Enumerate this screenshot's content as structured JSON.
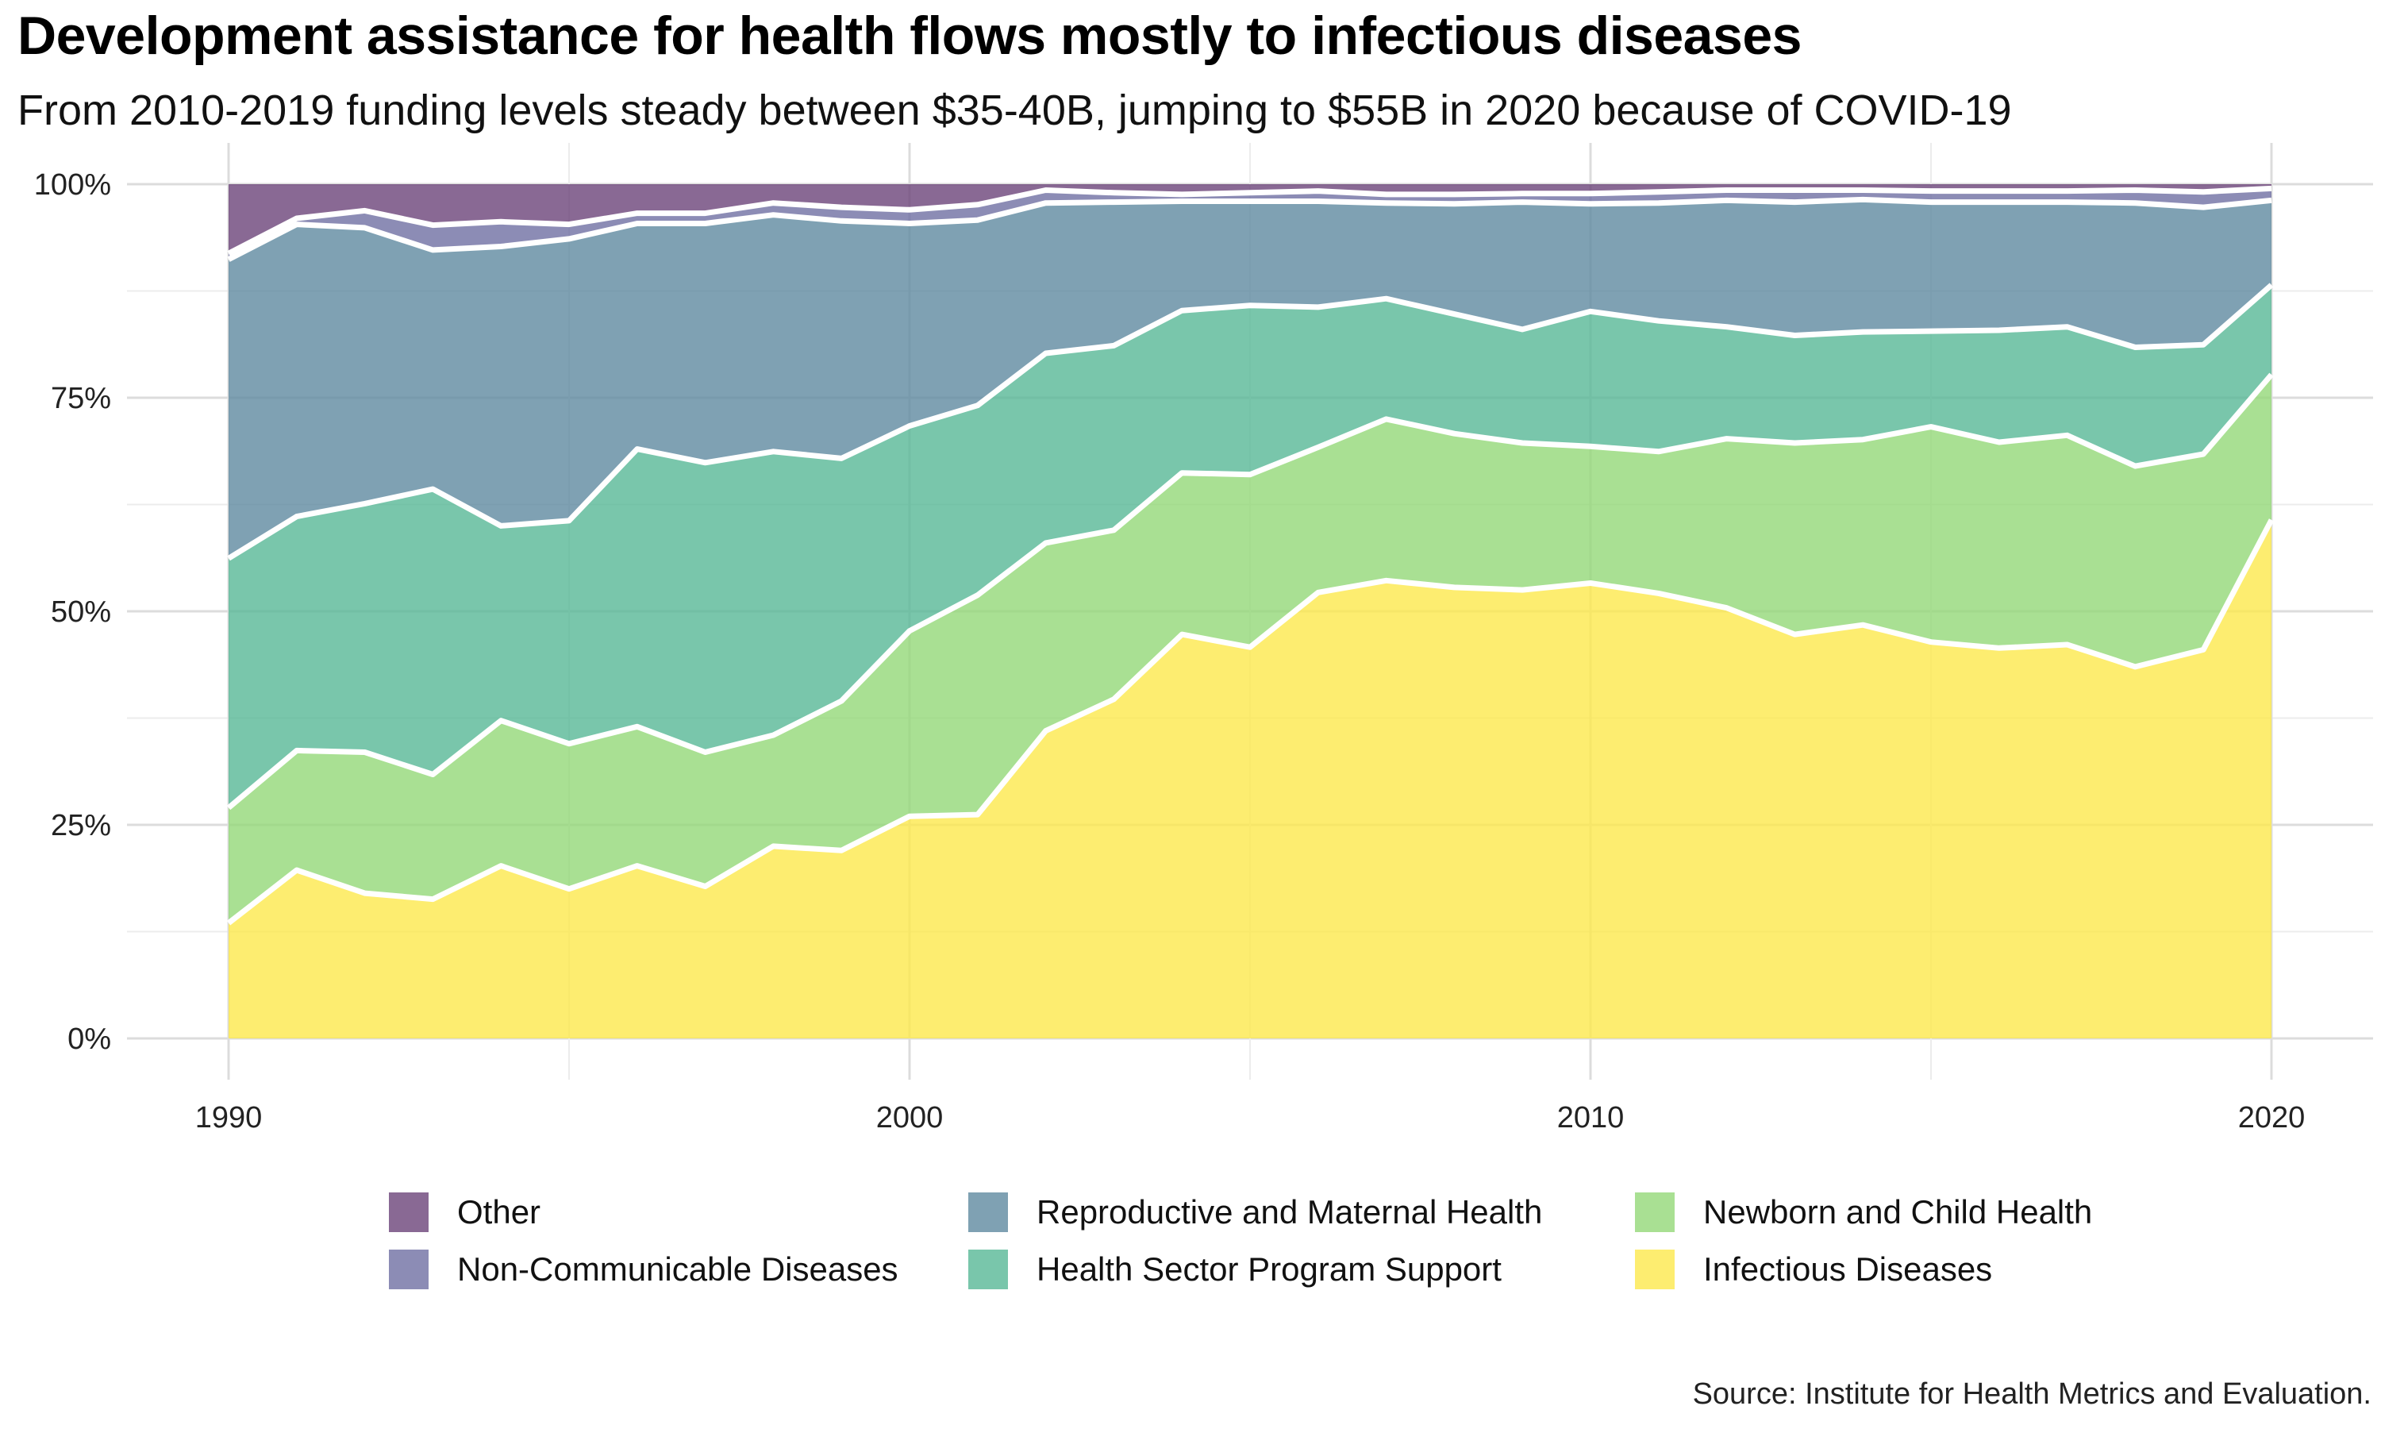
{
  "title": "Development assistance for health flows mostly to infectious diseases",
  "subtitle": "From 2010-2019 funding levels steady between $35-40B, jumping to $55B in 2020 because of COVID-19",
  "source": "Source: Institute for Health Metrics and Evaluation.",
  "legend": [
    {
      "label": "Other",
      "color": "#6b4479"
    },
    {
      "label": "Reproductive and Maternal Health",
      "color": "#5f8aa0"
    },
    {
      "label": "Newborn and Child Health",
      "color": "#93d878"
    },
    {
      "label": "Non-Communicable Diseases",
      "color": "#6f6fa3"
    },
    {
      "label": "Health Sector Program Support",
      "color": "#58b896"
    },
    {
      "label": "Infectious Diseases",
      "color": "#fde94c"
    }
  ],
  "chart_data": {
    "type": "area",
    "stacked": true,
    "normalized": true,
    "x": [
      1990,
      1991,
      1992,
      1993,
      1994,
      1995,
      1996,
      1997,
      1998,
      1999,
      2000,
      2001,
      2002,
      2003,
      2004,
      2005,
      2006,
      2007,
      2008,
      2009,
      2010,
      2011,
      2012,
      2013,
      2014,
      2015,
      2016,
      2017,
      2018,
      2019,
      2020
    ],
    "x_ticks": [
      "1990",
      "2000",
      "2010",
      "2020"
    ],
    "y_ticks": [
      "0%",
      "25%",
      "50%",
      "75%",
      "100%"
    ],
    "ylim": [
      0,
      100
    ],
    "grid": true,
    "legend_position": "bottom",
    "series": [
      {
        "name": "Infectious Diseases",
        "color": "#fde94c",
        "values": [
          13.5,
          19.7,
          17.0,
          16.3,
          20.2,
          17.5,
          20.2,
          17.8,
          22.5,
          22.0,
          26.0,
          26.2,
          36.0,
          39.7,
          47.3,
          45.8,
          52.2,
          53.6,
          52.8,
          52.5,
          53.3,
          52.1,
          50.4,
          47.3,
          48.4,
          46.4,
          45.7,
          46.1,
          43.5,
          45.5,
          60.7
        ]
      },
      {
        "name": "Newborn and Child Health",
        "color": "#93d878",
        "values": [
          13.5,
          14.0,
          16.5,
          14.6,
          17.0,
          17.0,
          16.3,
          15.7,
          13.0,
          17.5,
          21.7,
          25.7,
          22.0,
          19.8,
          18.9,
          20.2,
          17.0,
          18.9,
          18.0,
          17.2,
          16.0,
          16.6,
          19.8,
          22.4,
          21.7,
          25.2,
          24.1,
          24.5,
          23.5,
          22.9,
          17.0
        ]
      },
      {
        "name": "Health Sector Program Support",
        "color": "#58b896",
        "values": [
          29.2,
          27.4,
          29.1,
          33.4,
          22.8,
          26.1,
          32.5,
          33.9,
          33.2,
          28.4,
          24.0,
          22.2,
          22.2,
          21.6,
          19.0,
          19.8,
          16.4,
          14.1,
          14.0,
          13.3,
          15.8,
          15.3,
          13.1,
          12.6,
          12.6,
          11.2,
          13.1,
          12.7,
          13.9,
          12.8,
          10.5
        ]
      },
      {
        "name": "Reproductive and Maternal Health",
        "color": "#5f8aa0",
        "values": [
          35.0,
          34.2,
          32.3,
          28.0,
          32.7,
          33.0,
          26.4,
          28.0,
          27.7,
          27.8,
          23.7,
          21.7,
          17.6,
          16.8,
          12.8,
          12.2,
          12.4,
          11.2,
          12.9,
          14.9,
          12.6,
          13.8,
          14.8,
          15.6,
          15.5,
          15.1,
          15.0,
          14.6,
          16.9,
          16.1,
          9.9
        ]
      },
      {
        "name": "Non-Communicable Diseases",
        "color": "#6f6fa3",
        "values": [
          0.7,
          0.7,
          2.0,
          2.9,
          2.9,
          1.7,
          1.2,
          1.2,
          1.4,
          1.6,
          1.6,
          1.8,
          1.5,
          1.1,
          0.8,
          1.0,
          1.2,
          1.0,
          1.1,
          1.0,
          1.2,
          1.3,
          1.2,
          1.4,
          1.1,
          1.3,
          1.3,
          1.3,
          1.5,
          1.8,
          1.4
        ]
      },
      {
        "name": "Other",
        "color": "#6b4479",
        "values": [
          8.1,
          4.0,
          3.1,
          4.8,
          4.4,
          4.7,
          3.4,
          3.4,
          2.2,
          2.7,
          3.0,
          2.4,
          0.7,
          1.0,
          1.2,
          1.0,
          0.8,
          1.2,
          1.2,
          1.1,
          1.1,
          0.9,
          0.7,
          0.7,
          0.7,
          0.8,
          0.8,
          0.8,
          0.7,
          0.9,
          0.5
        ]
      }
    ]
  }
}
